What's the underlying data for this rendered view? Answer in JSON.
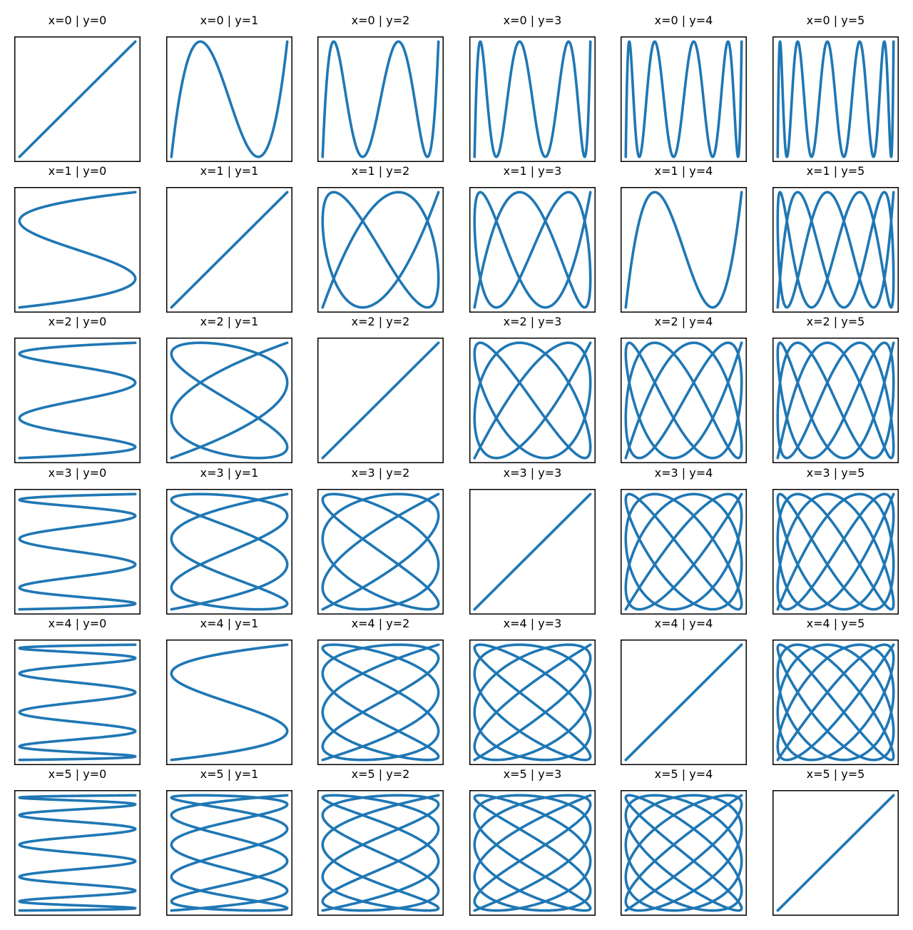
{
  "chart_data": {
    "type": "line",
    "rows": 6,
    "cols": 6,
    "line_color": "#1f77b4",
    "frame_color": "#000000",
    "ticks": "none",
    "subplots": [
      {
        "title": "x=0 | y=0",
        "x_freq": 0,
        "y_freq": 0
      },
      {
        "title": "x=0 | y=1",
        "x_freq": 0,
        "y_freq": 1
      },
      {
        "title": "x=0 | y=2",
        "x_freq": 0,
        "y_freq": 2
      },
      {
        "title": "x=0 | y=3",
        "x_freq": 0,
        "y_freq": 3
      },
      {
        "title": "x=0 | y=4",
        "x_freq": 0,
        "y_freq": 4
      },
      {
        "title": "x=0 | y=5",
        "x_freq": 0,
        "y_freq": 5
      },
      {
        "title": "x=1 | y=0",
        "x_freq": 1,
        "y_freq": 0
      },
      {
        "title": "x=1 | y=1",
        "x_freq": 1,
        "y_freq": 1
      },
      {
        "title": "x=1 | y=2",
        "x_freq": 1,
        "y_freq": 2
      },
      {
        "title": "x=1 | y=3",
        "x_freq": 1,
        "y_freq": 3
      },
      {
        "title": "x=1 | y=4",
        "x_freq": 1,
        "y_freq": 4
      },
      {
        "title": "x=1 | y=5",
        "x_freq": 1,
        "y_freq": 5
      },
      {
        "title": "x=2 | y=0",
        "x_freq": 2,
        "y_freq": 0
      },
      {
        "title": "x=2 | y=1",
        "x_freq": 2,
        "y_freq": 1
      },
      {
        "title": "x=2 | y=2",
        "x_freq": 2,
        "y_freq": 2
      },
      {
        "title": "x=2 | y=3",
        "x_freq": 2,
        "y_freq": 3
      },
      {
        "title": "x=2 | y=4",
        "x_freq": 2,
        "y_freq": 4
      },
      {
        "title": "x=2 | y=5",
        "x_freq": 2,
        "y_freq": 5
      },
      {
        "title": "x=3 | y=0",
        "x_freq": 3,
        "y_freq": 0
      },
      {
        "title": "x=3 | y=1",
        "x_freq": 3,
        "y_freq": 1
      },
      {
        "title": "x=3 | y=2",
        "x_freq": 3,
        "y_freq": 2
      },
      {
        "title": "x=3 | y=3",
        "x_freq": 3,
        "y_freq": 3
      },
      {
        "title": "x=3 | y=4",
        "x_freq": 3,
        "y_freq": 4
      },
      {
        "title": "x=3 | y=5",
        "x_freq": 3,
        "y_freq": 5
      },
      {
        "title": "x=4 | y=0",
        "x_freq": 4,
        "y_freq": 0
      },
      {
        "title": "x=4 | y=1",
        "x_freq": 4,
        "y_freq": 1
      },
      {
        "title": "x=4 | y=2",
        "x_freq": 4,
        "y_freq": 2
      },
      {
        "title": "x=4 | y=3",
        "x_freq": 4,
        "y_freq": 3
      },
      {
        "title": "x=4 | y=4",
        "x_freq": 4,
        "y_freq": 4
      },
      {
        "title": "x=4 | y=5",
        "x_freq": 4,
        "y_freq": 5
      },
      {
        "title": "x=5 | y=0",
        "x_freq": 5,
        "y_freq": 0
      },
      {
        "title": "x=5 | y=1",
        "x_freq": 5,
        "y_freq": 1
      },
      {
        "title": "x=5 | y=2",
        "x_freq": 5,
        "y_freq": 2
      },
      {
        "title": "x=5 | y=3",
        "x_freq": 5,
        "y_freq": 3
      },
      {
        "title": "x=5 | y=4",
        "x_freq": 5,
        "y_freq": 4
      },
      {
        "title": "x=5 | y=5",
        "x_freq": 5,
        "y_freq": 5
      }
    ]
  }
}
